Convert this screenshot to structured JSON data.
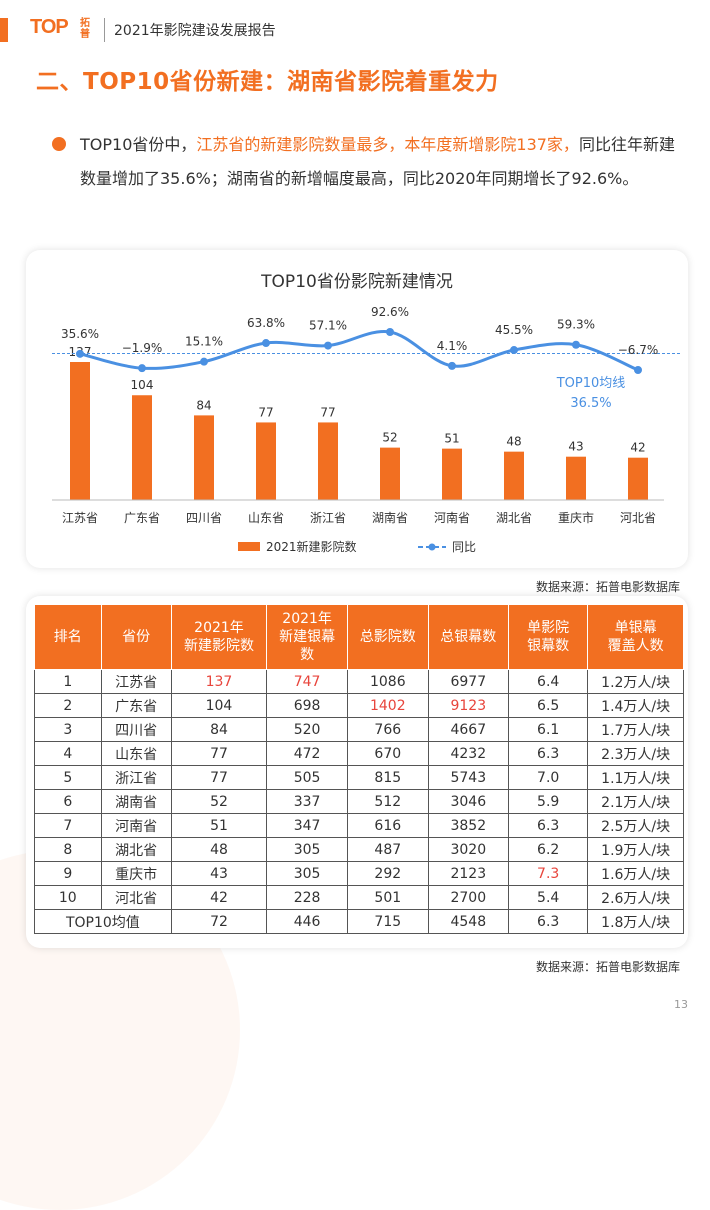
{
  "header": {
    "logo_text": "TOP",
    "logo_cn": "拓普",
    "title": "2021年影院建设发展报告"
  },
  "section": {
    "title": "二、TOP10省份新建：湖南省影院着重发力"
  },
  "summary": {
    "p1": "TOP10省份中，",
    "p2": "江苏省的新建影院数量最多，本年度新增影院137家，",
    "p3": "同比往年新建数量增加了35.6%；湖南省的新增幅度最高，同比2020年同期增长了92.6%。"
  },
  "chart_data": {
    "type": "bar",
    "title": "TOP10省份影院新建情况",
    "categories": [
      "江苏省",
      "广东省",
      "四川省",
      "山东省",
      "浙江省",
      "湖南省",
      "河南省",
      "湖北省",
      "重庆市",
      "河北省"
    ],
    "series": [
      {
        "name": "2021新建影院数",
        "values": [
          137,
          104,
          84,
          77,
          77,
          52,
          51,
          48,
          43,
          42
        ],
        "labels": [
          "137",
          "104",
          "84",
          "77",
          "77",
          "52",
          "51",
          "48",
          "43",
          "42"
        ]
      },
      {
        "name": "同比",
        "values": [
          35.6,
          -1.9,
          15.1,
          63.8,
          57.1,
          92.6,
          4.1,
          45.5,
          59.3,
          -6.7
        ],
        "labels": [
          "35.6%",
          "−1.9%",
          "15.1%",
          "63.8%",
          "57.1%",
          "92.6%",
          "4.1%",
          "45.5%",
          "59.3%",
          "−6.7%"
        ]
      }
    ],
    "avg_line": {
      "label": "TOP10均线",
      "value_label": "36.5%",
      "value": 36.5
    },
    "legend_position": "bottom",
    "colors": {
      "bar": "#f26f21",
      "line": "#4a90e2"
    }
  },
  "sources": {
    "chart": "数据来源：拓普电影数据库",
    "table": "数据来源：拓普电影数据库"
  },
  "table": {
    "headers": [
      "排名",
      "省份",
      "2021年\n新建影院数",
      "2021年\n新建银幕\n数",
      "总影院数",
      "总银幕数",
      "单影院\n银幕数",
      "单银幕\n覆盖人数"
    ],
    "rows": [
      [
        "1",
        "江苏省",
        "137",
        "747",
        "1086",
        "6977",
        "6.4",
        "1.2万人/块"
      ],
      [
        "2",
        "广东省",
        "104",
        "698",
        "1402",
        "9123",
        "6.5",
        "1.4万人/块"
      ],
      [
        "3",
        "四川省",
        "84",
        "520",
        "766",
        "4667",
        "6.1",
        "1.7万人/块"
      ],
      [
        "4",
        "山东省",
        "77",
        "472",
        "670",
        "4232",
        "6.3",
        "2.3万人/块"
      ],
      [
        "5",
        "浙江省",
        "77",
        "505",
        "815",
        "5743",
        "7.0",
        "1.1万人/块"
      ],
      [
        "6",
        "湖南省",
        "52",
        "337",
        "512",
        "3046",
        "5.9",
        "2.1万人/块"
      ],
      [
        "7",
        "河南省",
        "51",
        "347",
        "616",
        "3852",
        "6.3",
        "2.5万人/块"
      ],
      [
        "8",
        "湖北省",
        "48",
        "305",
        "487",
        "3020",
        "6.2",
        "1.9万人/块"
      ],
      [
        "9",
        "重庆市",
        "43",
        "305",
        "292",
        "2123",
        "7.3",
        "1.6万人/块"
      ],
      [
        "10",
        "河北省",
        "42",
        "228",
        "501",
        "2700",
        "5.4",
        "2.6万人/块"
      ]
    ],
    "avg_row": [
      "TOP10均值",
      "72",
      "446",
      "715",
      "4548",
      "6.3",
      "1.8万人/块"
    ],
    "highlight_color": "#e8453c"
  },
  "footer": {
    "page_number": "13"
  }
}
